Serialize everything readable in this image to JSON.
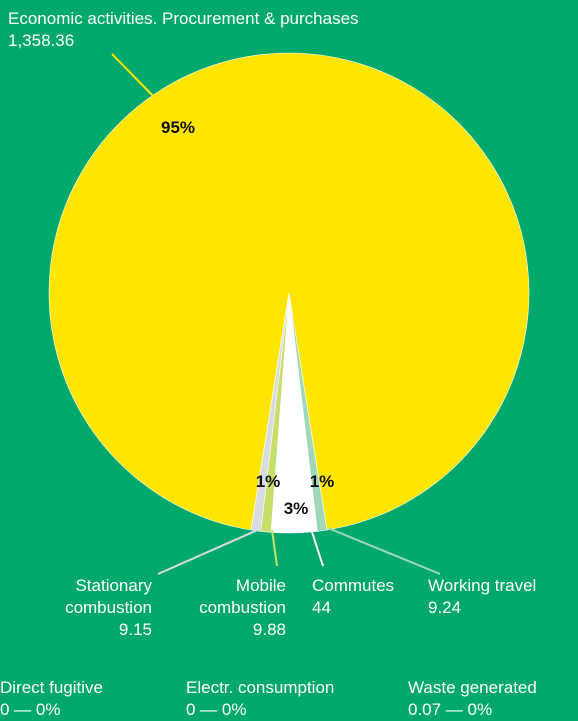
{
  "chart_data": {
    "type": "pie",
    "slices": [
      {
        "name": "Economic activities. Procurement & purchases",
        "value": 1358.36,
        "value_label": "1,358.36",
        "percent_label": "95%",
        "color": "#FFE600"
      },
      {
        "name": "Working travel",
        "value": 9.24,
        "value_label": "9.24",
        "percent_label": "1%",
        "color": "#9FD8B8"
      },
      {
        "name": "Commutes",
        "value": 44,
        "value_label": "44",
        "percent_label": "3%",
        "color": "#FFFFFF"
      },
      {
        "name": "Mobile combustion",
        "value": 9.88,
        "value_label": "9.88",
        "percent_label": "",
        "color": "#C6DE6A"
      },
      {
        "name": "Stationary combustion",
        "value": 9.15,
        "value_label": "9.15",
        "percent_label": "1%",
        "color": "#D6DCE0"
      }
    ],
    "zero_items": [
      {
        "name": "Direct fugitive",
        "value_text": "0 — 0%"
      },
      {
        "name": "Electr. consumption",
        "value_text": "0 — 0%"
      },
      {
        "name": "Waste generated",
        "value_text": "0.07 — 0%"
      }
    ],
    "colors": {
      "background": "#00A86B",
      "text": "#FFFFFF",
      "percent_text": "#111111"
    }
  }
}
